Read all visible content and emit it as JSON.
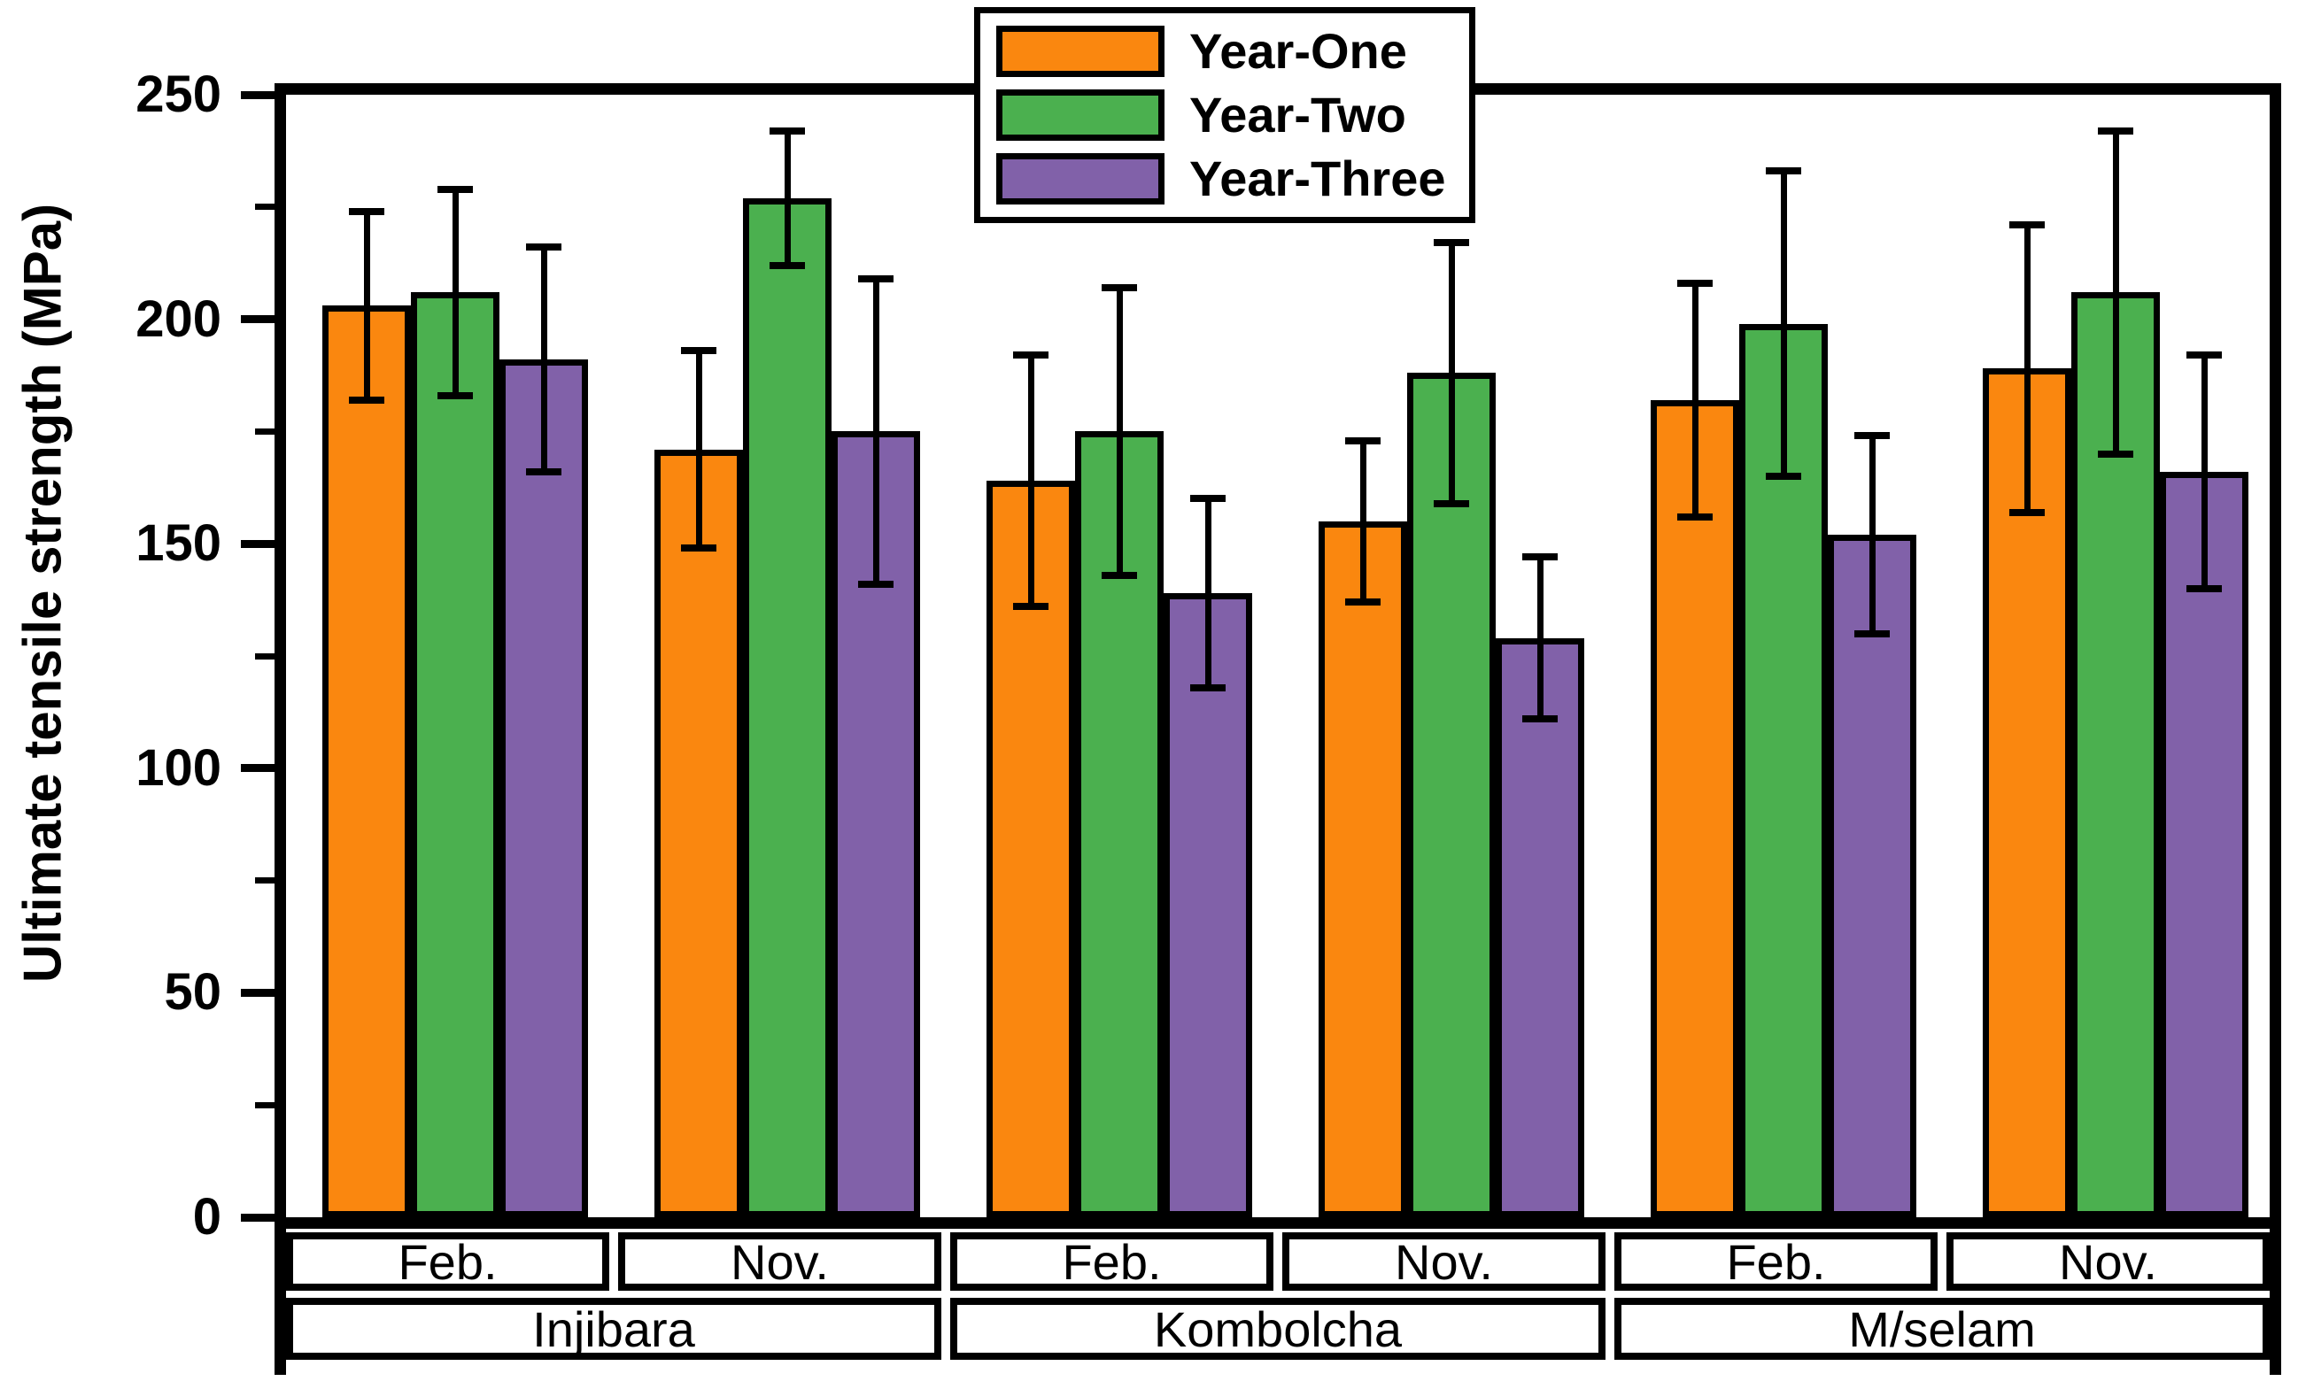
{
  "figure": {
    "background": "#ffffff"
  },
  "chart_data": {
    "type": "bar",
    "title": "",
    "xlabel": "",
    "ylabel": "Ultimate tensile strength (MPa)",
    "ylim": [
      0,
      250
    ],
    "yticks_major": [
      0,
      50,
      100,
      150,
      200,
      250
    ],
    "yticks_minor": [
      25,
      75,
      125,
      175,
      225
    ],
    "grid": false,
    "error_bars": true,
    "legend_position": "top-center",
    "bar_border_color": "#000000",
    "series": [
      {
        "name": "Year-One",
        "color": "#FA870F"
      },
      {
        "name": "Year-Two",
        "color": "#4BB04F"
      },
      {
        "name": "Year-Three",
        "color": "#8161A9"
      }
    ],
    "groups": [
      {
        "location": "Injibara",
        "months": [
          {
            "label": "Feb.",
            "bars": [
              {
                "series": "Year-One",
                "value": 203,
                "err_low": 182,
                "err_high": 224
              },
              {
                "series": "Year-Two",
                "value": 206,
                "err_low": 183,
                "err_high": 229
              },
              {
                "series": "Year-Three",
                "value": 191,
                "err_low": 166,
                "err_high": 216
              }
            ]
          },
          {
            "label": "Nov.",
            "bars": [
              {
                "series": "Year-One",
                "value": 171,
                "err_low": 149,
                "err_high": 193
              },
              {
                "series": "Year-Two",
                "value": 227,
                "err_low": 212,
                "err_high": 242
              },
              {
                "series": "Year-Three",
                "value": 175,
                "err_low": 141,
                "err_high": 209
              }
            ]
          }
        ]
      },
      {
        "location": "Kombolcha",
        "months": [
          {
            "label": "Feb.",
            "bars": [
              {
                "series": "Year-One",
                "value": 164,
                "err_low": 136,
                "err_high": 192
              },
              {
                "series": "Year-Two",
                "value": 175,
                "err_low": 143,
                "err_high": 207
              },
              {
                "series": "Year-Three",
                "value": 139,
                "err_low": 118,
                "err_high": 160
              }
            ]
          },
          {
            "label": "Nov.",
            "bars": [
              {
                "series": "Year-One",
                "value": 155,
                "err_low": 137,
                "err_high": 173
              },
              {
                "series": "Year-Two",
                "value": 188,
                "err_low": 159,
                "err_high": 217
              },
              {
                "series": "Year-Three",
                "value": 129,
                "err_low": 111,
                "err_high": 147
              }
            ]
          }
        ]
      },
      {
        "location": "M/selam",
        "months": [
          {
            "label": "Feb.",
            "bars": [
              {
                "series": "Year-One",
                "value": 182,
                "err_low": 156,
                "err_high": 208
              },
              {
                "series": "Year-Two",
                "value": 199,
                "err_low": 165,
                "err_high": 233
              },
              {
                "series": "Year-Three",
                "value": 152,
                "err_low": 130,
                "err_high": 174
              }
            ]
          },
          {
            "label": "Nov.",
            "bars": [
              {
                "series": "Year-One",
                "value": 189,
                "err_low": 157,
                "err_high": 221
              },
              {
                "series": "Year-Two",
                "value": 206,
                "err_low": 170,
                "err_high": 242
              },
              {
                "series": "Year-Three",
                "value": 166,
                "err_low": 140,
                "err_high": 192
              }
            ]
          }
        ]
      }
    ]
  }
}
